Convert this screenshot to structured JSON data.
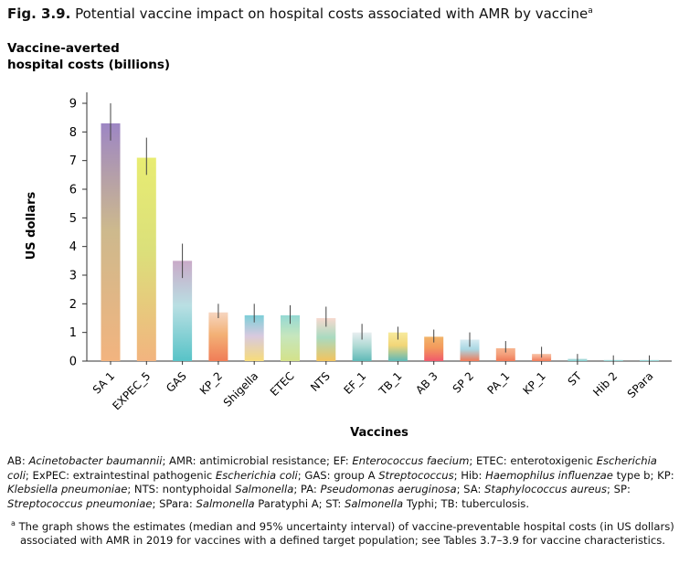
{
  "figure": {
    "number": "Fig. 3.9.",
    "title": "Potential vaccine impact on hospital costs associated with AMR by vaccine",
    "title_marker": "a"
  },
  "chart_data": {
    "type": "bar",
    "ytitle_line1": "Vaccine-averted",
    "ytitle_line2": "hospital costs (billions)",
    "ylabel": "US dollars",
    "xlabel": "Vaccines",
    "ylim": [
      0,
      9
    ],
    "yticks": [
      0,
      1,
      2,
      3,
      4,
      5,
      6,
      7,
      8,
      9
    ],
    "categories": [
      "SA 1",
      "EXPEC_5",
      "GAS",
      "KP_2",
      "Shigella",
      "ETEC",
      "NTS",
      "EF_1",
      "TB_1",
      "AB 3",
      "SP 2",
      "PA_1",
      "KP_1",
      "ST",
      "Hib 2",
      "SPara"
    ],
    "values": [
      8.3,
      7.1,
      3.5,
      1.7,
      1.6,
      1.6,
      1.5,
      1.0,
      1.0,
      0.85,
      0.75,
      0.45,
      0.25,
      0.08,
      0.04,
      0.04
    ],
    "lower": [
      7.7,
      6.5,
      2.9,
      1.5,
      1.35,
      1.3,
      1.2,
      0.75,
      0.75,
      0.65,
      0.5,
      0.3,
      0.12,
      0.0,
      0.0,
      0.0
    ],
    "upper": [
      9.0,
      7.8,
      4.1,
      2.0,
      2.0,
      1.95,
      1.9,
      1.3,
      1.2,
      1.1,
      1.0,
      0.7,
      0.5,
      0.25,
      0.2,
      0.2
    ],
    "colors": [
      [
        "#f2b47f",
        "#cdb98d",
        "#9d86c4"
      ],
      [
        "#f2b47f",
        "#dbe07a",
        "#e8ec72"
      ],
      [
        "#57c3c7",
        "#b9dfe3",
        "#c9aac8"
      ],
      [
        "#f07d57",
        "#f3b176",
        "#f6d6c0"
      ],
      [
        "#f7dc7a",
        "#d8c9df",
        "#7dcfd8"
      ],
      [
        "#d4e28a",
        "#c6e6bd",
        "#95d9d4"
      ],
      [
        "#f3c45e",
        "#a9dac0",
        "#f7d9cf"
      ],
      [
        "#5fb9b7",
        "#b2dbd6",
        "#e8eef0"
      ],
      [
        "#5fb9b7",
        "#f2d678",
        "#f7ea9c"
      ],
      [
        "#f05a6b",
        "#f39a5c",
        "#f2b46a"
      ],
      [
        "#f07a58",
        "#a9d7e3",
        "#d8ecf2"
      ],
      [
        "#f07a58",
        "#f4a17d",
        "#f7b58f"
      ],
      [
        "#f07a58",
        "#f6a586",
        "#f8c3a7"
      ],
      [
        "#7ccbcb",
        "#9ed6d6",
        "#bfe3e3"
      ],
      [
        "#7ccbcb",
        "#9ed6d6",
        "#bfe3e3"
      ],
      [
        "#7ccbcb",
        "#9ed6d6",
        "#bfe3e3"
      ]
    ]
  },
  "notes": {
    "abbreviations": [
      {
        "t": "AB: "
      },
      {
        "t": "Acinetobacter baumannii",
        "i": true
      },
      {
        "t": "; AMR: antimicrobial resistance; EF: "
      },
      {
        "t": "Enterococcus faecium",
        "i": true
      },
      {
        "t": "; ETEC: enterotoxigenic "
      },
      {
        "t": "Escherichia coli",
        "i": true
      },
      {
        "t": "; ExPEC: extraintestinal pathogenic "
      },
      {
        "t": "Escherichia coli",
        "i": true
      },
      {
        "t": "; GAS: group A "
      },
      {
        "t": "Streptococcus",
        "i": true
      },
      {
        "t": "; Hib: "
      },
      {
        "t": "Haemophilus influenzae",
        "i": true
      },
      {
        "t": " type b; KP: "
      },
      {
        "t": "Klebsiella pneumoniae",
        "i": true
      },
      {
        "t": "; NTS: nontyphoidal "
      },
      {
        "t": "Salmonella",
        "i": true
      },
      {
        "t": "; PA: "
      },
      {
        "t": "Pseudomonas aeruginosa",
        "i": true
      },
      {
        "t": "; SA: "
      },
      {
        "t": "Staphylococcus aureus",
        "i": true
      },
      {
        "t": "; SP: "
      },
      {
        "t": "Streptococcus pneumoniae",
        "i": true
      },
      {
        "t": "; SPara: "
      },
      {
        "t": "Salmonella",
        "i": true
      },
      {
        "t": " Paratyphi A; ST: "
      },
      {
        "t": "Salmonella",
        "i": true
      },
      {
        "t": " Typhi; TB: tuberculosis."
      }
    ],
    "footnote_marker": "a",
    "footnote": "The graph shows the estimates (median and 95% uncertainty interval) of vaccine-preventable hospital costs (in US dollars) associated with AMR in 2019 for vaccines with a defined target population; see Tables 3.7–3.9 for vaccine characteristics."
  }
}
